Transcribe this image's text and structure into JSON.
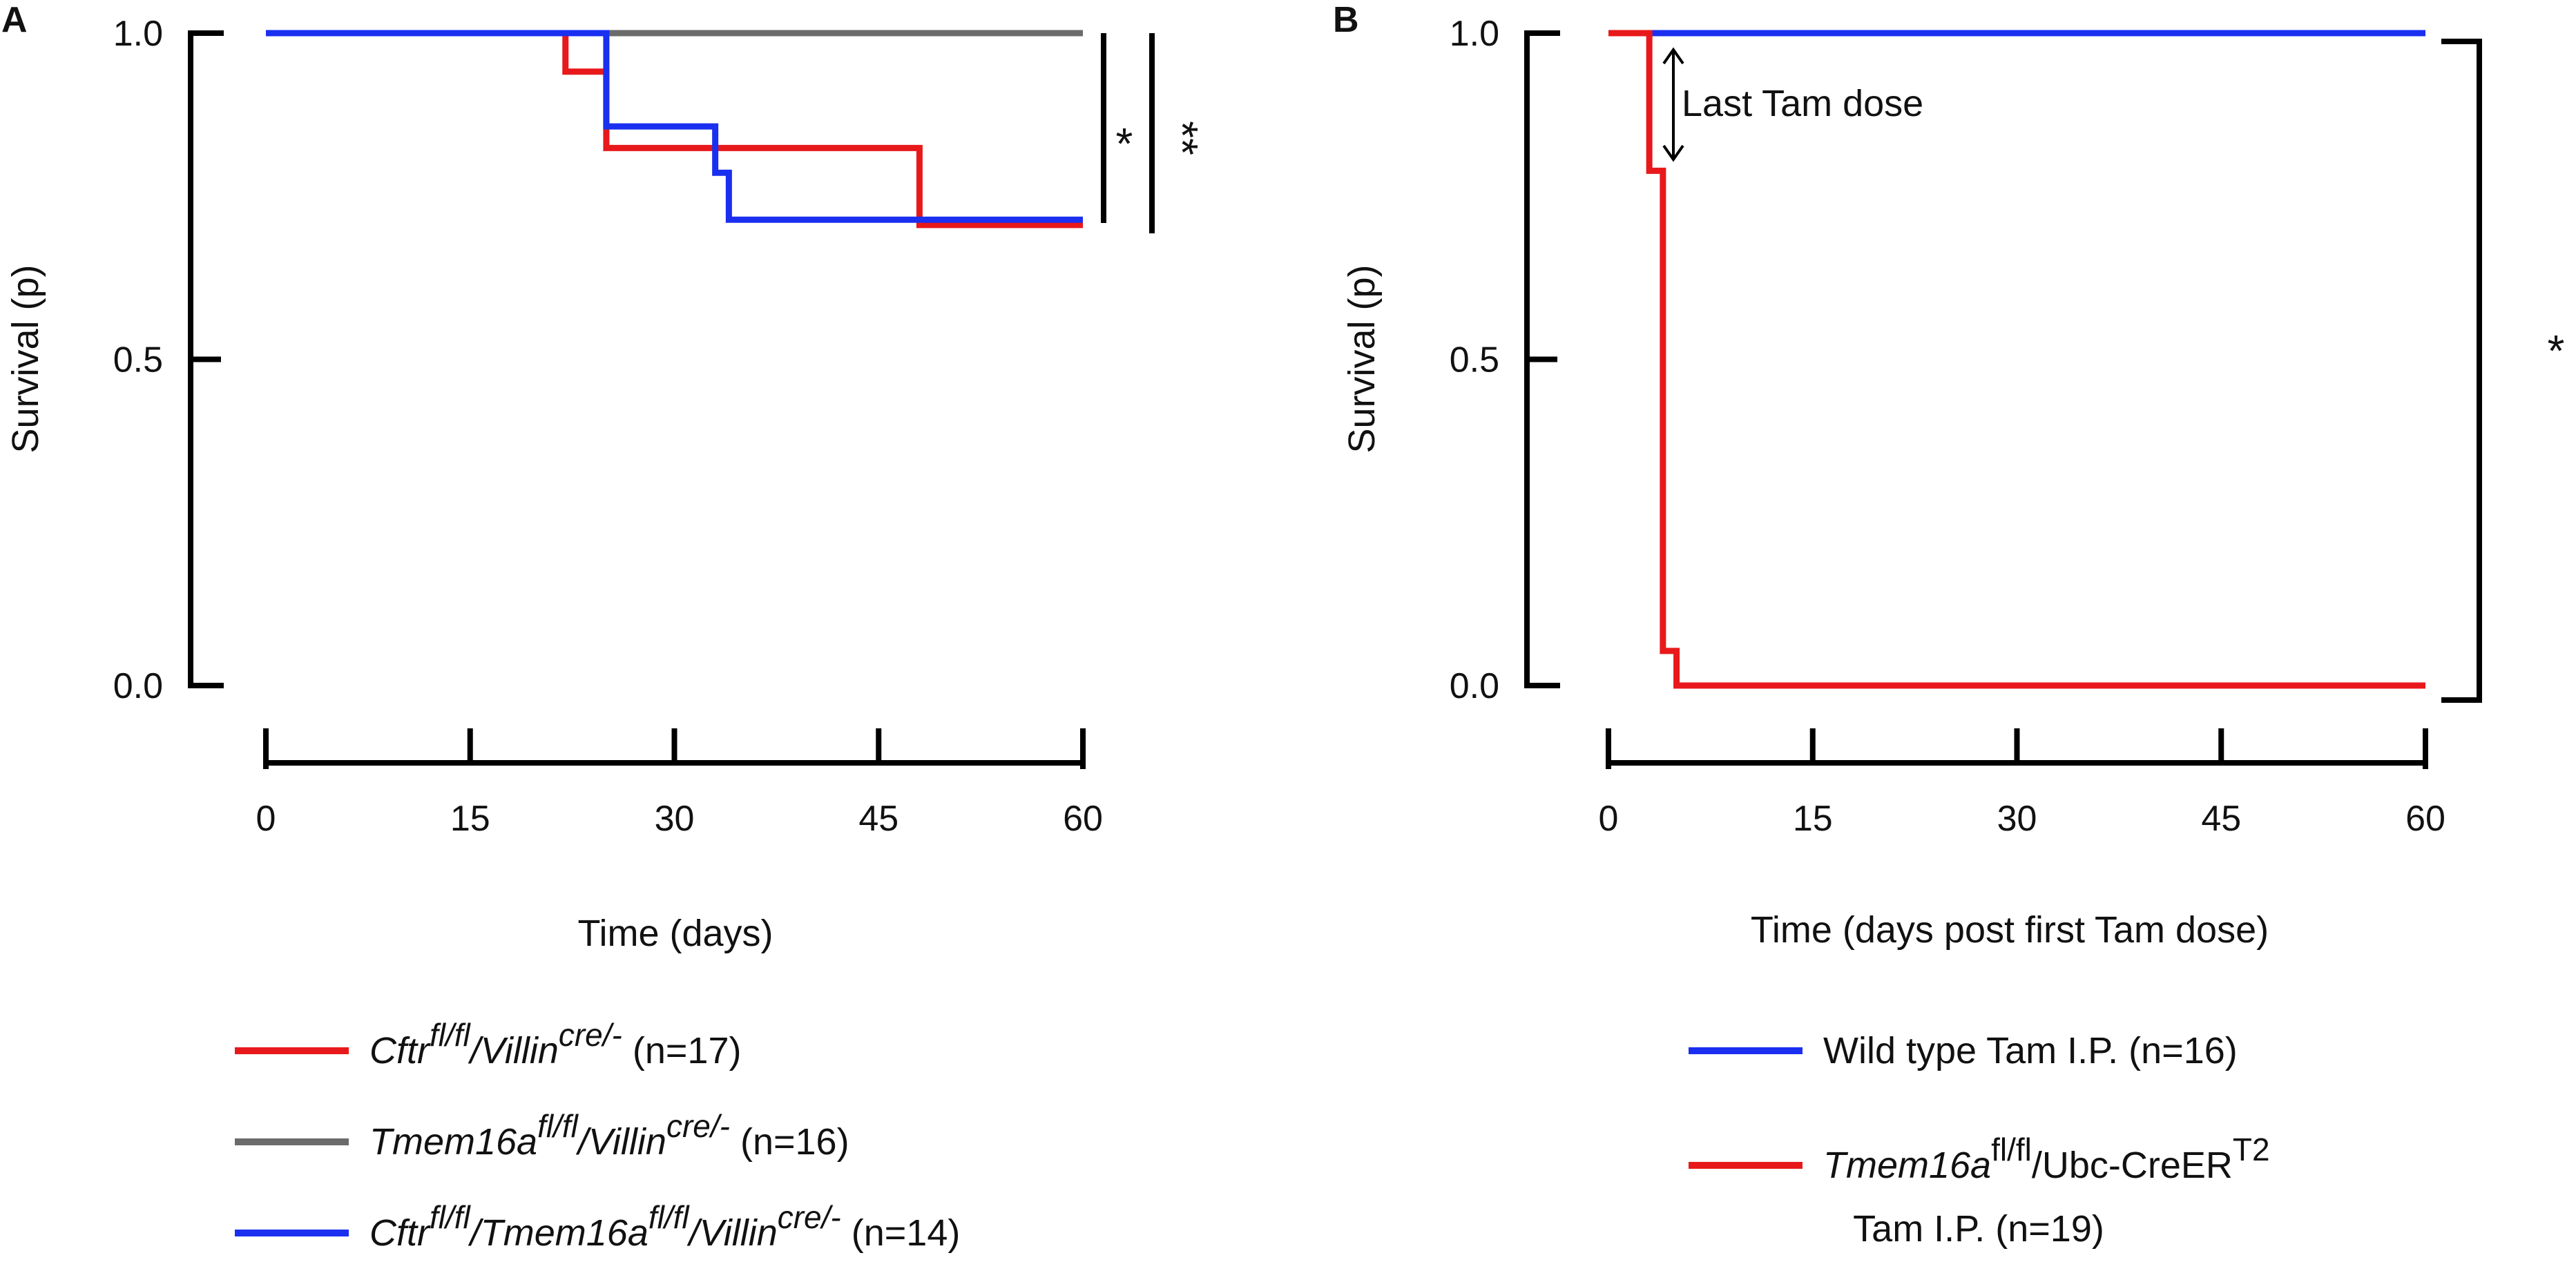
{
  "chart_data": [
    {
      "panel_label": "A",
      "type": "line",
      "step": true,
      "xlabel": "Time (days)",
      "ylabel": "Survival (p)",
      "xlim": [
        0,
        60
      ],
      "ylim": [
        0,
        1
      ],
      "x_ticks": [
        0,
        15,
        30,
        45,
        60
      ],
      "y_ticks": [
        0.0,
        0.5,
        1.0
      ],
      "x_tick_labels": [
        "0",
        "15",
        "30",
        "45",
        "60"
      ],
      "y_tick_labels": [
        "0.0",
        "0.5",
        "1.0"
      ],
      "series": [
        {
          "name": "Cftr fl/fl /Villin cre/-",
          "legend": {
            "parts": [
              {
                "t": "Cftr",
                "i": true
              },
              {
                "t": "fl/fl",
                "i": true,
                "sup": true
              },
              {
                "t": "/Villin",
                "i": true
              },
              {
                "t": "cre/-",
                "i": true,
                "sup": true
              },
              {
                "t": "  (n=17)"
              }
            ]
          },
          "color": "#e8191b",
          "x": [
            0,
            22,
            25,
            48,
            60
          ],
          "y": [
            1.0,
            0.941,
            0.824,
            0.706,
            0.706
          ]
        },
        {
          "name": "Tmem16a fl/fl /Villin cre/-",
          "legend": {
            "parts": [
              {
                "t": "Tmem16a",
                "i": true
              },
              {
                "t": "fl/fl",
                "i": true,
                "sup": true
              },
              {
                "t": "/Villin",
                "i": true
              },
              {
                "t": "cre/-",
                "i": true,
                "sup": true
              },
              {
                "t": "  (n=16)"
              }
            ]
          },
          "color": "#6b6b6b",
          "x": [
            0,
            60
          ],
          "y": [
            1.0,
            1.0
          ]
        },
        {
          "name": "Cftr fl/fl /Tmem16a fl/fl /Villin cre/-",
          "legend": {
            "parts": [
              {
                "t": "Cftr",
                "i": true
              },
              {
                "t": "fl/fl",
                "i": true,
                "sup": true
              },
              {
                "t": "/Tmem16a",
                "i": true
              },
              {
                "t": "fl/fl",
                "i": true,
                "sup": true
              },
              {
                "t": "/Villin",
                "i": true
              },
              {
                "t": "cre/-",
                "i": true,
                "sup": true
              },
              {
                "t": " (n=14)"
              }
            ]
          },
          "color": "#1a2ff0",
          "x": [
            0,
            25,
            33,
            34,
            60
          ],
          "y": [
            1.0,
            0.857,
            0.786,
            0.714,
            0.714
          ]
        }
      ],
      "annotations": [
        {
          "text": "*",
          "type": "significance-bracket"
        },
        {
          "text": "**",
          "type": "significance-bracket"
        }
      ]
    },
    {
      "panel_label": "B",
      "type": "line",
      "step": true,
      "xlabel": "Time (days post first Tam dose)",
      "ylabel": "Survival (p)",
      "xlim": [
        0,
        60
      ],
      "ylim": [
        0,
        1
      ],
      "x_ticks": [
        0,
        15,
        30,
        45,
        60
      ],
      "y_ticks": [
        0.0,
        0.5,
        1.0
      ],
      "x_tick_labels": [
        "0",
        "15",
        "30",
        "45",
        "60"
      ],
      "y_tick_labels": [
        "0.0",
        "0.5",
        "1.0"
      ],
      "series": [
        {
          "name": "Wild type Tam I.P. (n=16)",
          "legend": {
            "parts": [
              {
                "t": "Wild type Tam I.P. (n=16)"
              }
            ]
          },
          "color": "#1a2ff0",
          "x": [
            0,
            60
          ],
          "y": [
            1.0,
            1.0
          ]
        },
        {
          "name": "Tmem16a fl/fl /Ubc-CreER T2 Tam I.P. (n=19)",
          "legend": {
            "parts": [
              {
                "t": "Tmem16a",
                "i": true
              },
              {
                "t": "fl/fl",
                "sup": true
              },
              {
                "t": "/Ubc-CreER"
              },
              {
                "t": "T2",
                "sup": true
              }
            ],
            "line2": "Tam I.P. (n=19)"
          },
          "color": "#e8191b",
          "x": [
            0,
            3,
            4,
            5,
            60
          ],
          "y": [
            1.0,
            0.789,
            0.053,
            0.0,
            0.0
          ]
        }
      ],
      "annotations": [
        {
          "text": "Last Tam dose",
          "type": "arrow-label"
        },
        {
          "text": "*",
          "type": "significance-bracket"
        }
      ]
    }
  ]
}
